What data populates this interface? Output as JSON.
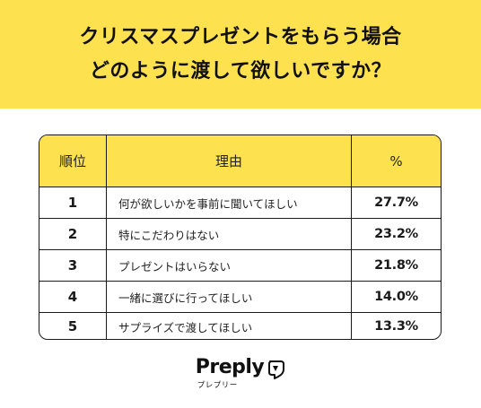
{
  "header": {
    "title_line1": "クリスマスプレゼントをもらう場合",
    "title_line2": "どのように渡して欲しいですか？"
  },
  "table": {
    "columns": [
      "順位",
      "理由",
      "%"
    ],
    "rows": [
      {
        "rank": "1",
        "reason": "何が欲しいかを事前に聞いてほしい",
        "percent": "27.7%"
      },
      {
        "rank": "2",
        "reason": "特にこだわりはない",
        "percent": "23.2%"
      },
      {
        "rank": "3",
        "reason": "プレゼントはいらない",
        "percent": "21.8%"
      },
      {
        "rank": "4",
        "reason": "一緒に選びに行ってほしい",
        "percent": "14.0%"
      },
      {
        "rank": "5",
        "reason": " サプライズで渡してほしい",
        "percent": "13.3%"
      }
    ]
  },
  "logo": {
    "word": "Preply",
    "kana": "プレプリー",
    "icon": "preply-heart-icon"
  },
  "colors": {
    "accent": "#fde14e",
    "text": "#1a1a1a",
    "background": "#ffffff"
  }
}
